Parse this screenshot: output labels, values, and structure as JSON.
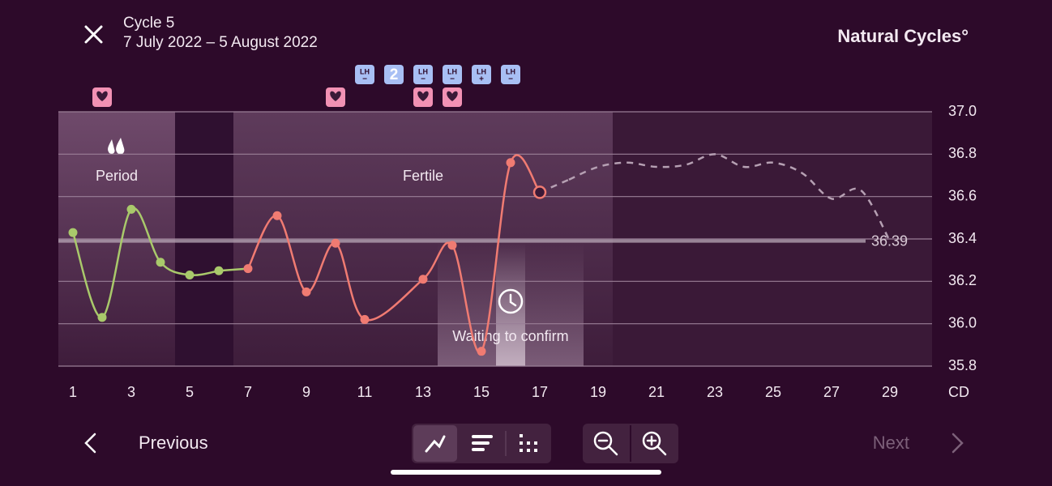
{
  "header": {
    "cycle": "Cycle 5",
    "dates": "7 July 2022 – 5 August 2022",
    "brand": "Natural Cycles°"
  },
  "chart_data": {
    "type": "line",
    "xlim": [
      0.5,
      30.5
    ],
    "ylim": [
      35.8,
      37.0
    ],
    "xticks": [
      1,
      3,
      5,
      7,
      9,
      11,
      13,
      15,
      17,
      19,
      21,
      23,
      25,
      27,
      29
    ],
    "yticks": [
      35.8,
      {
        "value": 36,
        "label": "36.0"
      },
      36.2,
      36.4,
      36.6,
      36.8,
      {
        "value": 37,
        "label": "37.0"
      }
    ],
    "x_label": "CD",
    "grid": true,
    "series": [
      {
        "color": "#a9c96b",
        "x": [
          1,
          2,
          3,
          4,
          5,
          6
        ],
        "values": [
          36.43,
          36.03,
          36.54,
          36.29,
          36.23,
          36.25
        ]
      },
      {
        "color": "#f07b72",
        "x": [
          7,
          8,
          9,
          10,
          11,
          13,
          14,
          15,
          16,
          17
        ],
        "values": [
          36.26,
          36.51,
          36.15,
          36.38,
          36.02,
          36.21,
          36.37,
          35.87,
          36.76,
          36.62
        ]
      },
      {
        "color": "#b6a0b3",
        "dashed": true,
        "x": [
          18,
          19,
          20,
          21,
          22,
          23,
          24,
          25,
          26,
          27,
          28,
          29
        ],
        "values": [
          36.68,
          36.74,
          36.76,
          36.74,
          36.75,
          36.8,
          36.74,
          36.76,
          36.71,
          36.59,
          36.63,
          36.39
        ]
      }
    ],
    "average": 36.39,
    "today": 17,
    "phases": [
      {
        "label": "Period",
        "start": 0.5,
        "end": 4.5
      },
      {
        "label": "Fertile",
        "start": 6.5,
        "end": 19.5
      }
    ],
    "waiting": {
      "label": "Waiting to confirm",
      "start": 13.5,
      "end": 18.5
    },
    "hearts": [
      2,
      10,
      13,
      14
    ],
    "lh_tests": [
      {
        "day": 11,
        "label": "LH",
        "result": "−"
      },
      {
        "day": 12,
        "label": "2"
      },
      {
        "day": 13,
        "label": "LH",
        "result": "−"
      },
      {
        "day": 14,
        "label": "LH",
        "result": "−"
      },
      {
        "day": 15,
        "label": "LH",
        "result": "+"
      },
      {
        "day": 16,
        "label": "LH",
        "result": "−"
      }
    ]
  },
  "footer": {
    "previous": "Previous",
    "next": "Next"
  }
}
